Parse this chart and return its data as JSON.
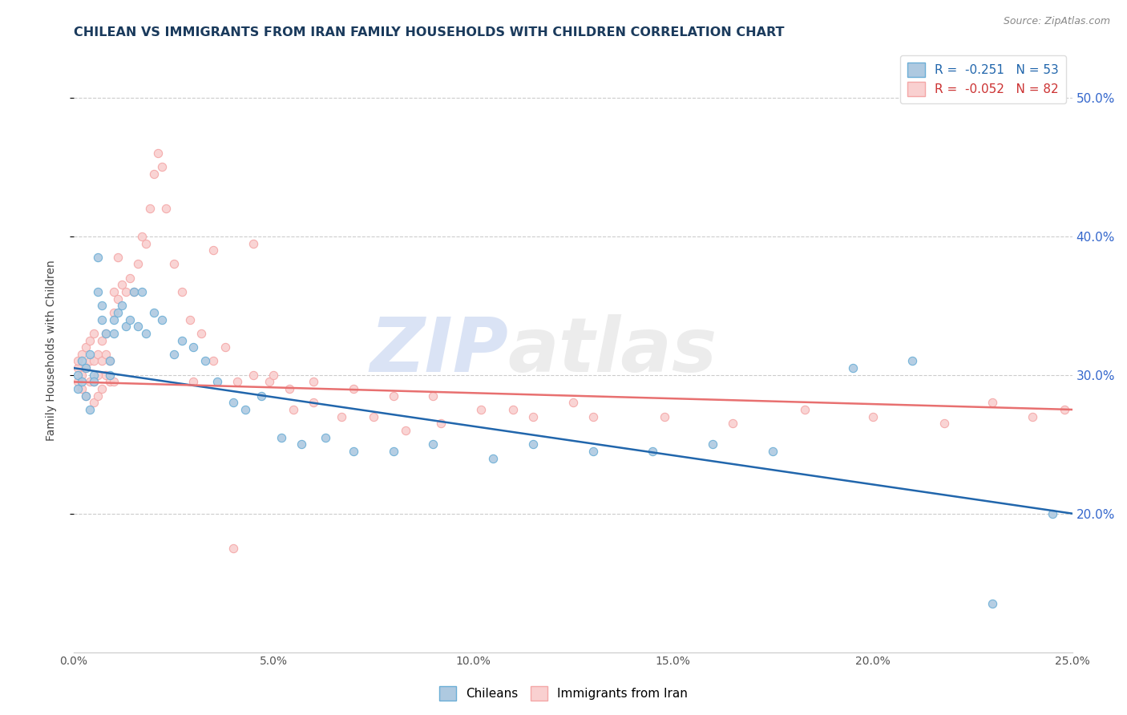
{
  "title": "CHILEAN VS IMMIGRANTS FROM IRAN FAMILY HOUSEHOLDS WITH CHILDREN CORRELATION CHART",
  "source": "Source: ZipAtlas.com",
  "ylabel": "Family Households with Children",
  "legend_label1": "Chileans",
  "legend_label2": "Immigrants from Iran",
  "legend_v1": "-0.251",
  "legend_n1": "N = 53",
  "legend_v2": "-0.052",
  "legend_n2": "N = 82",
  "chilean_color": "#6baed6",
  "chilean_color_light": "#aec9e0",
  "iran_color": "#f4a7a7",
  "iran_color_light": "#f9d0d0",
  "line_color_chilean": "#2166ac",
  "line_color_iran": "#e87070",
  "watermark_zip": "ZIP",
  "watermark_atlas": "atlas",
  "x_min": 0.0,
  "x_max": 0.25,
  "y_min": 0.1,
  "y_max": 0.535,
  "yticks": [
    0.2,
    0.3,
    0.4,
    0.5
  ],
  "xticks": [
    0.0,
    0.05,
    0.1,
    0.15,
    0.2,
    0.25
  ],
  "chilean_x": [
    0.001,
    0.001,
    0.002,
    0.002,
    0.003,
    0.003,
    0.004,
    0.004,
    0.005,
    0.005,
    0.006,
    0.006,
    0.007,
    0.007,
    0.008,
    0.009,
    0.009,
    0.01,
    0.01,
    0.011,
    0.012,
    0.013,
    0.014,
    0.015,
    0.016,
    0.017,
    0.018,
    0.02,
    0.022,
    0.025,
    0.027,
    0.03,
    0.033,
    0.036,
    0.04,
    0.043,
    0.047,
    0.052,
    0.057,
    0.063,
    0.07,
    0.08,
    0.09,
    0.105,
    0.115,
    0.13,
    0.145,
    0.16,
    0.175,
    0.195,
    0.21,
    0.23,
    0.245
  ],
  "chilean_y": [
    0.3,
    0.29,
    0.31,
    0.295,
    0.305,
    0.285,
    0.315,
    0.275,
    0.3,
    0.295,
    0.385,
    0.36,
    0.35,
    0.34,
    0.33,
    0.31,
    0.3,
    0.34,
    0.33,
    0.345,
    0.35,
    0.335,
    0.34,
    0.36,
    0.335,
    0.36,
    0.33,
    0.345,
    0.34,
    0.315,
    0.325,
    0.32,
    0.31,
    0.295,
    0.28,
    0.275,
    0.285,
    0.255,
    0.25,
    0.255,
    0.245,
    0.245,
    0.25,
    0.24,
    0.25,
    0.245,
    0.245,
    0.25,
    0.245,
    0.305,
    0.31,
    0.135,
    0.2
  ],
  "iran_x": [
    0.001,
    0.001,
    0.001,
    0.002,
    0.002,
    0.002,
    0.003,
    0.003,
    0.003,
    0.004,
    0.004,
    0.004,
    0.005,
    0.005,
    0.005,
    0.005,
    0.006,
    0.006,
    0.006,
    0.007,
    0.007,
    0.007,
    0.008,
    0.008,
    0.008,
    0.009,
    0.009,
    0.01,
    0.01,
    0.01,
    0.011,
    0.011,
    0.012,
    0.013,
    0.014,
    0.015,
    0.016,
    0.017,
    0.018,
    0.019,
    0.02,
    0.021,
    0.022,
    0.023,
    0.025,
    0.027,
    0.029,
    0.032,
    0.035,
    0.038,
    0.041,
    0.045,
    0.049,
    0.054,
    0.06,
    0.067,
    0.075,
    0.083,
    0.092,
    0.102,
    0.115,
    0.13,
    0.148,
    0.165,
    0.183,
    0.2,
    0.218,
    0.23,
    0.24,
    0.248,
    0.09,
    0.11,
    0.125,
    0.05,
    0.06,
    0.07,
    0.08,
    0.03,
    0.04,
    0.035,
    0.045,
    0.055
  ],
  "iran_y": [
    0.295,
    0.305,
    0.31,
    0.29,
    0.3,
    0.315,
    0.285,
    0.305,
    0.32,
    0.295,
    0.31,
    0.325,
    0.28,
    0.295,
    0.31,
    0.33,
    0.285,
    0.3,
    0.315,
    0.29,
    0.31,
    0.325,
    0.3,
    0.315,
    0.33,
    0.295,
    0.31,
    0.295,
    0.345,
    0.36,
    0.355,
    0.385,
    0.365,
    0.36,
    0.37,
    0.36,
    0.38,
    0.4,
    0.395,
    0.42,
    0.445,
    0.46,
    0.45,
    0.42,
    0.38,
    0.36,
    0.34,
    0.33,
    0.31,
    0.32,
    0.295,
    0.3,
    0.295,
    0.29,
    0.28,
    0.27,
    0.27,
    0.26,
    0.265,
    0.275,
    0.27,
    0.27,
    0.27,
    0.265,
    0.275,
    0.27,
    0.265,
    0.28,
    0.27,
    0.275,
    0.285,
    0.275,
    0.28,
    0.3,
    0.295,
    0.29,
    0.285,
    0.295,
    0.175,
    0.39,
    0.395,
    0.275
  ]
}
